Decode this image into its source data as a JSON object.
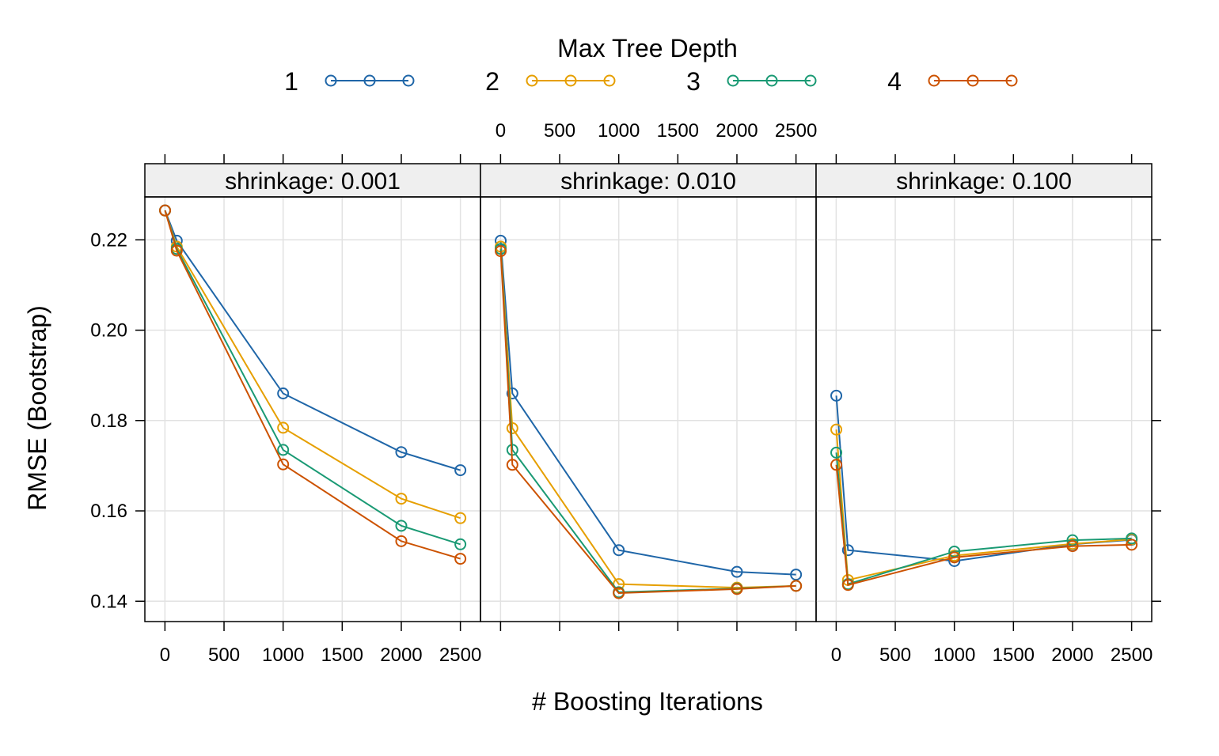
{
  "chart_data": {
    "type": "line",
    "legend": {
      "title": "Max Tree Depth",
      "placement": "top",
      "entries": [
        {
          "label": "1",
          "color": "#1f66a8"
        },
        {
          "label": "2",
          "color": "#e69f00"
        },
        {
          "label": "3",
          "color": "#1a9a74"
        },
        {
          "label": "4",
          "color": "#cc5200"
        }
      ]
    },
    "xlabel": "# Boosting Iterations",
    "ylabel": "RMSE (Bootstrap)",
    "xlim": [
      -170,
      2670
    ],
    "ylim": [
      0.1355,
      0.2295
    ],
    "x_ticks": [
      0,
      500,
      1000,
      1500,
      2000,
      2500
    ],
    "x_tick_labels": [
      "0",
      "500",
      "1000",
      "1500",
      "2000",
      "2500"
    ],
    "y_ticks": [
      0.14,
      0.16,
      0.18,
      0.2,
      0.22
    ],
    "y_tick_labels": [
      "0.14",
      "0.16",
      "0.18",
      "0.20",
      "0.22"
    ],
    "grid": true,
    "panels": [
      {
        "strip": "shrinkage: 0.001",
        "x_labels_position": "bottom",
        "series": [
          {
            "name": "1",
            "x": [
              1,
              100,
              1000,
              2000,
              2500
            ],
            "y": [
              0.2265,
              0.2198,
              0.186,
              0.173,
              0.169
            ]
          },
          {
            "name": "2",
            "x": [
              1,
              100,
              1000,
              2000,
              2500
            ],
            "y": [
              0.2265,
              0.2185,
              0.1784,
              0.1627,
              0.1584
            ]
          },
          {
            "name": "3",
            "x": [
              1,
              100,
              1000,
              2000,
              2500
            ],
            "y": [
              0.2265,
              0.218,
              0.1735,
              0.1567,
              0.1526
            ]
          },
          {
            "name": "4",
            "x": [
              1,
              100,
              1000,
              2000,
              2500
            ],
            "y": [
              0.2265,
              0.2176,
              0.1703,
              0.1533,
              0.1494
            ]
          }
        ]
      },
      {
        "strip": "shrinkage: 0.010",
        "x_labels_position": "top",
        "series": [
          {
            "name": "1",
            "x": [
              1,
              100,
              1000,
              2000,
              2500
            ],
            "y": [
              0.2198,
              0.186,
              0.1513,
              0.1465,
              0.1459
            ]
          },
          {
            "name": "2",
            "x": [
              1,
              100,
              1000,
              2000,
              2500
            ],
            "y": [
              0.2185,
              0.1783,
              0.1438,
              0.143,
              0.1434
            ]
          },
          {
            "name": "3",
            "x": [
              1,
              100,
              1000,
              2000,
              2500
            ],
            "y": [
              0.218,
              0.1735,
              0.142,
              0.1428,
              0.1434
            ]
          },
          {
            "name": "4",
            "x": [
              1,
              100,
              1000,
              2000,
              2500
            ],
            "y": [
              0.2175,
              0.1702,
              0.1418,
              0.1427,
              0.1434
            ]
          }
        ]
      },
      {
        "strip": "shrinkage: 0.100",
        "x_labels_position": "bottom",
        "series": [
          {
            "name": "1",
            "x": [
              1,
              100,
              1000,
              2000,
              2500
            ],
            "y": [
              0.1855,
              0.1513,
              0.1489,
              0.1526,
              0.1536
            ]
          },
          {
            "name": "2",
            "x": [
              1,
              100,
              1000,
              2000,
              2500
            ],
            "y": [
              0.178,
              0.1447,
              0.1501,
              0.1527,
              0.1537
            ]
          },
          {
            "name": "3",
            "x": [
              1,
              100,
              1000,
              2000,
              2500
            ],
            "y": [
              0.1729,
              0.1438,
              0.151,
              0.1535,
              0.1539
            ]
          },
          {
            "name": "4",
            "x": [
              1,
              100,
              1000,
              2000,
              2500
            ],
            "y": [
              0.1702,
              0.1436,
              0.1497,
              0.1522,
              0.1525
            ]
          }
        ]
      }
    ]
  }
}
